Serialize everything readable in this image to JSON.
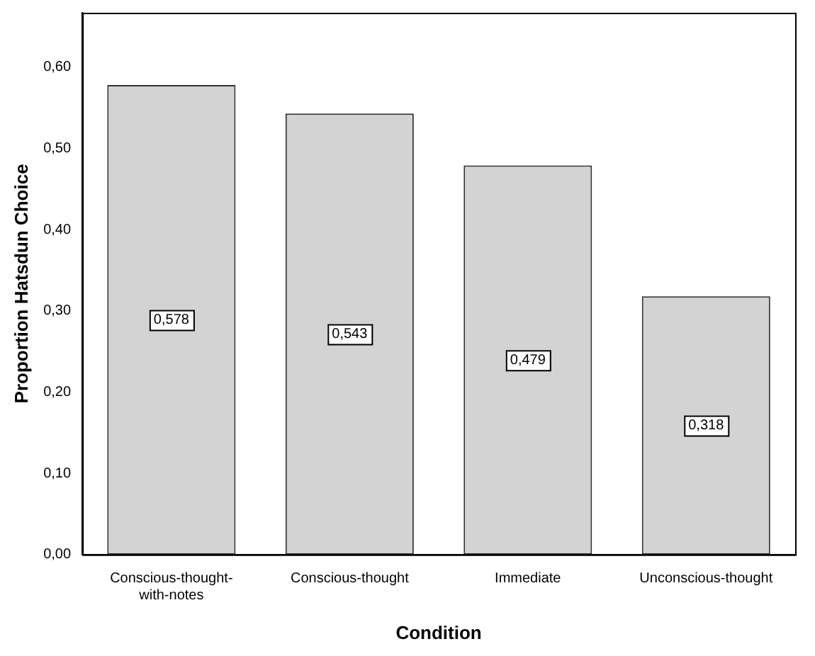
{
  "chart_data": {
    "type": "bar",
    "xlabel": "Condition",
    "ylabel": "Proportion Hatsdun Choice",
    "categories": [
      "Conscious-thought-with-notes",
      "Conscious-thought",
      "Immediate",
      "Unconscious-thought"
    ],
    "values": [
      0.578,
      0.543,
      0.479,
      0.318
    ],
    "value_labels": [
      "0,578",
      "0,543",
      "0,479",
      "0,318"
    ],
    "color": "#d3d3d3",
    "ylim": [
      0,
      0.667
    ],
    "yticks": [
      {
        "value": 0,
        "label": "0,00"
      },
      {
        "value": 0.1,
        "label": "0,10"
      },
      {
        "value": 0.2,
        "label": "0,20"
      },
      {
        "value": 0.3,
        "label": "0,30"
      },
      {
        "value": 0.4,
        "label": "0,40"
      },
      {
        "value": 0.5,
        "label": "0,50"
      },
      {
        "value": 0.6,
        "label": "0,60"
      }
    ],
    "grid": false,
    "legend": false
  }
}
